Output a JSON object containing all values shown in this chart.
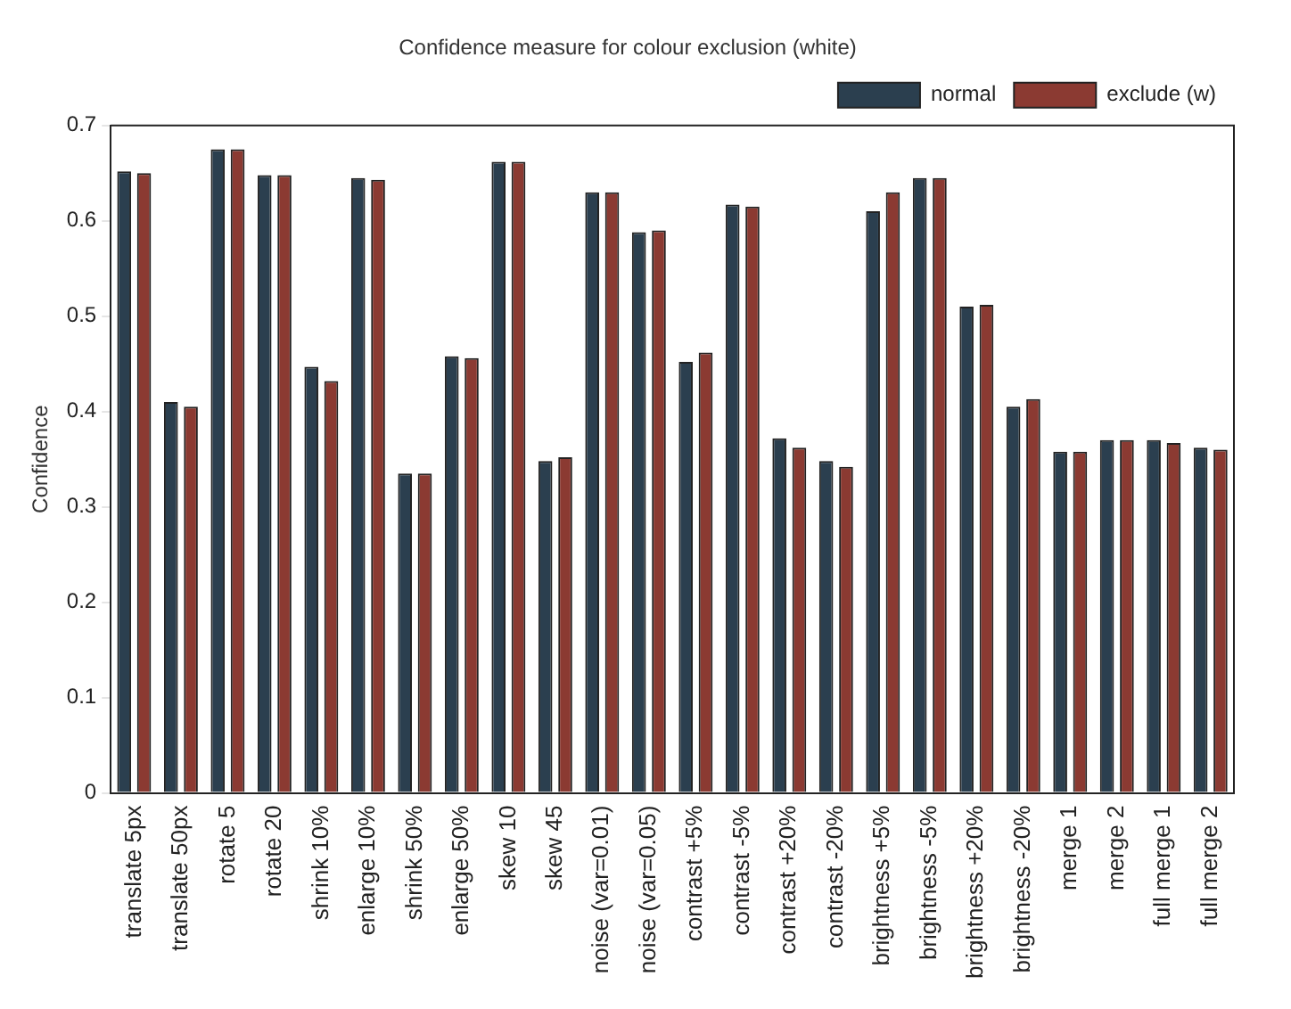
{
  "chart_data": {
    "type": "bar",
    "title": "Confidence measure for colour exclusion (white)",
    "ylabel": "Confidence",
    "categories": [
      "translate 5px",
      "translate 50px",
      "rotate 5",
      "rotate 20",
      "shrink 10%",
      "enlarge 10%",
      "shrink 50%",
      "enlarge 50%",
      "skew 10",
      "skew 45",
      "noise (var=0.01)",
      "noise (var=0.05)",
      "contrast +5%",
      "contrast -5%",
      "contrast +20%",
      "contrast -20%",
      "brightness +5%",
      "brightness -5%",
      "brightness +20%",
      "brightness -20%",
      "merge 1",
      "merge 2",
      "full merge 1",
      "full merge 2"
    ],
    "series": [
      {
        "name": "normal",
        "color": "#2b3f4f",
        "values": [
          0.652,
          0.41,
          0.675,
          0.648,
          0.447,
          0.645,
          0.335,
          0.458,
          0.662,
          0.348,
          0.63,
          0.588,
          0.452,
          0.617,
          0.372,
          0.348,
          0.61,
          0.645,
          0.51,
          0.405,
          0.358,
          0.37,
          0.37,
          0.362
        ]
      },
      {
        "name": "exclude (w)",
        "color": "#8b3a32",
        "values": [
          0.65,
          0.405,
          0.675,
          0.648,
          0.432,
          0.643,
          0.335,
          0.456,
          0.662,
          0.352,
          0.63,
          0.59,
          0.462,
          0.615,
          0.362,
          0.342,
          0.63,
          0.645,
          0.512,
          0.413,
          0.358,
          0.37,
          0.367,
          0.36
        ]
      }
    ],
    "ylim": [
      0,
      0.7
    ],
    "yticks": [
      0,
      0.1,
      0.2,
      0.3,
      0.4,
      0.5,
      0.6,
      0.7
    ],
    "grid": false,
    "legend": "top right"
  }
}
